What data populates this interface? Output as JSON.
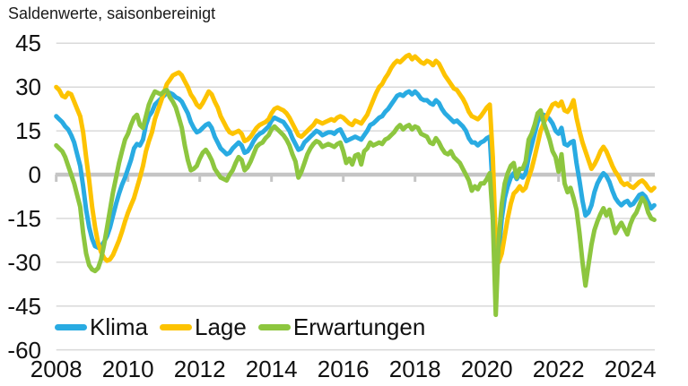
{
  "title": "Saldenwerte, saisonbereinigt",
  "colors": {
    "background": "#ffffff",
    "grid": "#d9d9d9",
    "zero_line": "#c5c5c5",
    "text": "#1a1a1a",
    "klima": "#29abe2",
    "lage": "#fdc300",
    "erwartungen": "#8dc63f"
  },
  "legend": {
    "items": [
      {
        "label": "Klima"
      },
      {
        "label": "Lage"
      },
      {
        "label": "Erwartungen"
      }
    ]
  },
  "chart_data": {
    "type": "line",
    "title": "Saldenwerte, saisonbereinigt",
    "xlabel": "",
    "ylabel": "",
    "ylim": [
      -60,
      45
    ],
    "y_ticks": [
      45,
      30,
      15,
      0,
      -15,
      -30,
      -45,
      -60
    ],
    "x_ticks": [
      2008,
      2010,
      2012,
      2014,
      2016,
      2018,
      2020,
      2022,
      2024
    ],
    "x_tick_labels": [
      "2008",
      "2010",
      "2012",
      "2014",
      "2016",
      "2018",
      "2020",
      "2022",
      "2024"
    ],
    "grid": "horizontal",
    "legend_position": "inside-bottom-left",
    "x_start_year": 2008,
    "x_step_months": 1,
    "x_end": "2024-09",
    "series": [
      {
        "name": "Klima",
        "color": "#29abe2",
        "values": [
          20,
          19,
          18,
          16.5,
          15.5,
          13.5,
          11,
          7,
          3,
          -4,
          -12,
          -18,
          -22,
          -24.5,
          -25,
          -24.5,
          -23,
          -21,
          -18,
          -14,
          -10,
          -6.5,
          -3.5,
          -1,
          2,
          5,
          9,
          10.5,
          10,
          12,
          17,
          20,
          21.5,
          24,
          25,
          26,
          27,
          28,
          28,
          27.5,
          26.5,
          26,
          25,
          23,
          21,
          18,
          16,
          14.5,
          15,
          16,
          17,
          17.5,
          16,
          13,
          11,
          9,
          8,
          7,
          7.5,
          9,
          10,
          11,
          10,
          7.5,
          8,
          9.5,
          11.5,
          13,
          14,
          14.5,
          15.5,
          16.5,
          18.5,
          19.5,
          19,
          18.5,
          18,
          16.5,
          15,
          12.5,
          10.5,
          8.5,
          9,
          11,
          12,
          13,
          14,
          15,
          14.5,
          13.5,
          14,
          14.5,
          14.5,
          14,
          15,
          15.5,
          13.5,
          11.5,
          12,
          12.5,
          13,
          12.5,
          12,
          13.5,
          15,
          17,
          17.5,
          18.5,
          19.5,
          20,
          21.5,
          22.5,
          24,
          25.5,
          27,
          27.5,
          27,
          28,
          28.5,
          27.5,
          28.5,
          27.5,
          26,
          25.5,
          25.5,
          24.5,
          24,
          25.5,
          24.5,
          22.5,
          21,
          20,
          19,
          18,
          18.5,
          17.5,
          16.5,
          15,
          12.5,
          11,
          11,
          10,
          11,
          11.5,
          12.5,
          13,
          -5,
          -33,
          -27,
          -15,
          -8,
          -4,
          -1,
          0.5,
          -1.5,
          0,
          -1,
          0.5,
          6,
          10,
          14,
          18,
          20,
          20.5,
          20,
          19,
          17.5,
          15,
          14,
          16,
          10.5,
          10,
          11,
          11.5,
          4,
          -2,
          -9,
          -14,
          -13,
          -10.5,
          -6,
          -3,
          -1,
          0.5,
          -0.5,
          -2.5,
          -5.5,
          -8,
          -9.5,
          -10.5,
          -9.5,
          -9,
          -10.5,
          -10,
          -8.5,
          -7,
          -6.5,
          -7.5,
          -9.5,
          -11.5,
          -10.5
        ]
      },
      {
        "name": "Lage",
        "color": "#fdc300",
        "values": [
          30,
          29,
          27,
          26.5,
          28,
          27.5,
          25,
          22.5,
          20,
          14.5,
          6,
          -2,
          -11,
          -18,
          -23.5,
          -26.5,
          -28.5,
          -29.5,
          -29,
          -27.5,
          -25,
          -22.5,
          -19.5,
          -16,
          -13,
          -10.5,
          -8,
          -4.5,
          -1,
          3,
          8,
          11.5,
          14.5,
          19,
          22,
          25,
          28,
          31,
          32.5,
          34,
          34.5,
          35,
          34,
          32,
          30,
          27.5,
          26,
          24,
          23,
          24.5,
          26.5,
          28.5,
          27.5,
          25,
          23,
          20,
          18,
          16,
          14.5,
          14,
          14.5,
          15,
          14,
          11.5,
          12,
          13,
          14.5,
          16,
          17,
          17.5,
          18,
          19,
          21,
          22.5,
          23,
          22.5,
          22,
          21,
          19.5,
          17.5,
          15.5,
          13.5,
          13,
          14,
          15,
          16,
          17,
          18.5,
          18,
          17.5,
          18,
          18.5,
          19,
          18.5,
          19.5,
          20,
          19.5,
          18.5,
          17.5,
          17,
          18.5,
          18,
          17.5,
          19,
          20.5,
          23,
          25.5,
          28,
          30,
          31,
          33,
          34.5,
          36.5,
          38,
          39,
          38.5,
          39.5,
          40.5,
          41,
          39.5,
          40.5,
          39.5,
          38.5,
          38,
          39,
          38.5,
          37.5,
          39,
          38,
          36,
          34,
          32.5,
          31,
          29.5,
          29,
          27.5,
          26,
          24,
          21.5,
          20,
          19.5,
          19,
          20,
          21.5,
          23,
          24,
          6,
          -23,
          -30,
          -27,
          -21,
          -15,
          -10,
          -6.5,
          -5.5,
          -4,
          -5.5,
          -4.5,
          -1,
          2,
          6,
          10.5,
          15,
          17.5,
          20,
          22,
          24,
          24.5,
          23.5,
          25,
          22,
          21.5,
          23,
          25.5,
          19.5,
          15,
          11,
          8,
          5,
          2,
          3.5,
          5.5,
          8,
          9.5,
          8,
          5.5,
          3,
          1,
          -0.5,
          -2.5,
          -3.5,
          -3,
          -4,
          -4.5,
          -3.5,
          -2.5,
          -2,
          -3,
          -4.5,
          -5.5,
          -4.5
        ]
      },
      {
        "name": "Erwartungen",
        "color": "#8dc63f",
        "values": [
          10,
          9,
          8,
          6,
          3,
          0,
          -3,
          -7,
          -11,
          -20,
          -27,
          -31,
          -32.5,
          -33,
          -32,
          -29,
          -24,
          -18,
          -12,
          -6,
          -1,
          4,
          8,
          12,
          14,
          17,
          19.5,
          20.5,
          17,
          16,
          20,
          24,
          26.5,
          28.5,
          28,
          27.5,
          28.5,
          29,
          26.5,
          25,
          23,
          19.5,
          16,
          10,
          5,
          1.5,
          2,
          3,
          5.5,
          7.5,
          8.5,
          7,
          5,
          2,
          0.5,
          -1,
          -1.5,
          -2,
          0,
          1.5,
          4,
          6,
          5,
          1.5,
          2.5,
          4.5,
          7,
          9.5,
          10.5,
          11,
          12.5,
          13.5,
          15.5,
          16.5,
          15.5,
          14.5,
          13.5,
          12,
          10,
          7,
          4.5,
          -1,
          1,
          4,
          7,
          9,
          10.5,
          11.5,
          11,
          9.5,
          10,
          10.5,
          10,
          9.5,
          10.5,
          11,
          8,
          4,
          5.5,
          3.5,
          6.5,
          7,
          3.5,
          8,
          9,
          11,
          10,
          10.5,
          11,
          10.5,
          12,
          12.5,
          13.5,
          14.5,
          16,
          17,
          15.5,
          16.5,
          17,
          15.5,
          16.5,
          16,
          14,
          13.5,
          13,
          11,
          10.5,
          12.5,
          11,
          9,
          7.5,
          7,
          8,
          6,
          5,
          4,
          2,
          0,
          -2,
          -5.5,
          -4,
          -5,
          -3,
          -3,
          -1.5,
          0.5,
          -15,
          -48,
          -22,
          -10,
          -3,
          0.5,
          3,
          4,
          -1,
          2,
          2,
          4.5,
          12,
          14,
          17,
          21,
          22,
          18,
          15,
          12,
          8,
          6,
          1,
          7,
          -3,
          -6,
          -4.5,
          -8,
          -12,
          -20,
          -30,
          -38,
          -31,
          -24,
          -19,
          -16,
          -13.5,
          -11.5,
          -14,
          -12,
          -16,
          -20,
          -18,
          -16.5,
          -18.5,
          -20.5,
          -17,
          -14.5,
          -13,
          -10.5,
          -8,
          -9.5,
          -13,
          -15,
          -15.5
        ]
      }
    ]
  }
}
